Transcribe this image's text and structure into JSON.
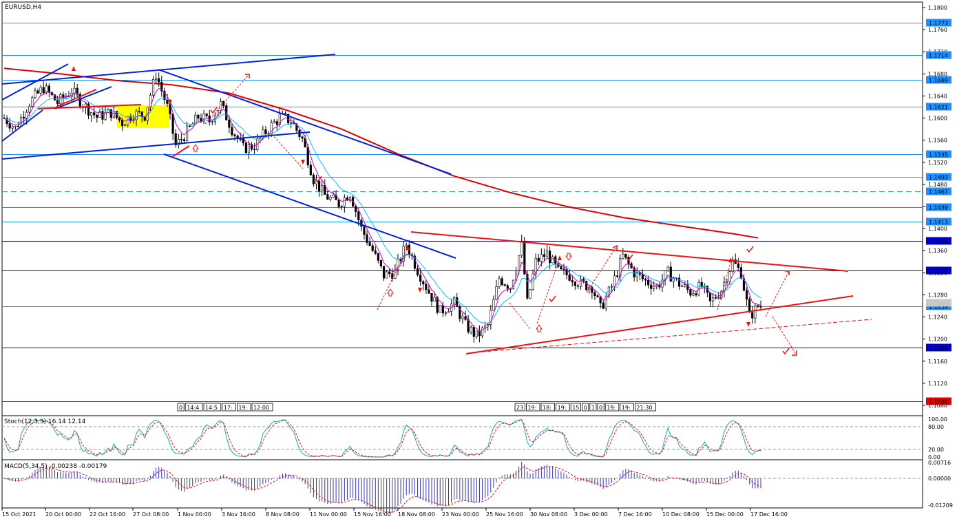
{
  "chart_data": {
    "type": "candlestick",
    "title": "EURUSD,H4",
    "symbol": "EURUSD",
    "timeframe": "H4",
    "price_axis": {
      "ylim": [
        1.107,
        1.1805
      ],
      "ticks": [
        "1.1800",
        "1.1760",
        "1.1720",
        "1.1680",
        "1.1640",
        "1.1600",
        "1.1560",
        "1.1520",
        "1.1480",
        "1.1440",
        "1.1400",
        "1.1360",
        "1.1320",
        "1.1280",
        "1.1240",
        "1.1200",
        "1.1160",
        "1.1120",
        "1.1080"
      ],
      "levels": [
        {
          "label": "1.1773",
          "value": 1.1773,
          "color": "#1e90ff"
        },
        {
          "label": "1.1714",
          "value": 1.1714,
          "color": "#1e90ff"
        },
        {
          "label": "1.1669",
          "value": 1.1669,
          "color": "#1e90ff"
        },
        {
          "label": "1.1621",
          "value": 1.1621,
          "color": "#1e90ff"
        },
        {
          "label": "1.1535",
          "value": 1.1535,
          "color": "#1e90ff"
        },
        {
          "label": "1.1493",
          "value": 1.1493,
          "color": "#1e90ff"
        },
        {
          "label": "1.1467",
          "value": 1.1467,
          "color": "#1e90ff",
          "dashed": true
        },
        {
          "label": "1.1439",
          "value": 1.1439,
          "color": "#1e90ff"
        },
        {
          "label": "1.1413",
          "value": 1.1413,
          "color": "#1e90ff"
        },
        {
          "label": "1.1378",
          "value": 1.1378,
          "color": "#0000cd"
        },
        {
          "label": "1.1324",
          "value": 1.1324,
          "color": "#0000cd"
        },
        {
          "label": "1.1259",
          "value": 1.1259,
          "color": "#1e90ff"
        },
        {
          "label": "1.1184",
          "value": 1.1184,
          "color": "#0000cd"
        },
        {
          "label": "1.1088",
          "value": 1.1088,
          "color": "#e00000"
        }
      ],
      "current_price": 1.1265
    },
    "time_axis": [
      "15 Oct 2021",
      "20 Oct 00:00",
      "22 Oct 16:00",
      "27 Oct 08:00",
      "1 Nov 00:00",
      "3 Nov 16:00",
      "8 Nov 08:00",
      "11 Nov 00:00",
      "15 Nov 16:00",
      "18 Nov 08:00",
      "23 Nov 00:00",
      "25 Nov 16:00",
      "30 Nov 08:00",
      "3 Dec 00:00",
      "7 Dec 16:00",
      "10 Dec 08:00",
      "15 Dec 00:00",
      "17 Dec 16:00"
    ],
    "anchors": [
      [
        0,
        1.16
      ],
      [
        4,
        1.1582
      ],
      [
        9,
        1.1628
      ],
      [
        14,
        1.1655
      ],
      [
        19,
        1.1628
      ],
      [
        24,
        1.165
      ],
      [
        28,
        1.1625
      ],
      [
        33,
        1.1602
      ],
      [
        38,
        1.161
      ],
      [
        42,
        1.1592
      ],
      [
        46,
        1.1608
      ],
      [
        50,
        1.1605
      ],
      [
        54,
        1.168
      ],
      [
        58,
        1.162
      ],
      [
        61,
        1.155
      ],
      [
        65,
        1.1575
      ],
      [
        69,
        1.1602
      ],
      [
        73,
        1.1595
      ],
      [
        77,
        1.1625
      ],
      [
        81,
        1.158
      ],
      [
        85,
        1.1545
      ],
      [
        89,
        1.155
      ],
      [
        93,
        1.1575
      ],
      [
        98,
        1.1602
      ],
      [
        102,
        1.1595
      ],
      [
        106,
        1.1562
      ],
      [
        110,
        1.149
      ],
      [
        114,
        1.146
      ],
      [
        119,
        1.1445
      ],
      [
        123,
        1.1465
      ],
      [
        127,
        1.14
      ],
      [
        131,
        1.136
      ],
      [
        135,
        1.1315
      ],
      [
        139,
        1.1322
      ],
      [
        143,
        1.1372
      ],
      [
        147,
        1.1325
      ],
      [
        151,
        1.1285
      ],
      [
        155,
        1.125
      ],
      [
        160,
        1.1265
      ],
      [
        164,
        1.1225
      ],
      [
        168,
        1.1205
      ],
      [
        172,
        1.1225
      ],
      [
        176,
        1.131
      ],
      [
        180,
        1.1295
      ],
      [
        184,
        1.137
      ],
      [
        186,
        1.1265
      ],
      [
        189,
        1.134
      ],
      [
        193,
        1.1355
      ],
      [
        197,
        1.1322
      ],
      [
        201,
        1.1315
      ],
      [
        205,
        1.13
      ],
      [
        209,
        1.1295
      ],
      [
        212,
        1.1255
      ],
      [
        216,
        1.1295
      ],
      [
        220,
        1.135
      ],
      [
        224,
        1.132
      ],
      [
        228,
        1.1305
      ],
      [
        232,
        1.1295
      ],
      [
        236,
        1.132
      ],
      [
        240,
        1.13
      ],
      [
        244,
        1.1285
      ],
      [
        248,
        1.1295
      ],
      [
        251,
        1.1265
      ],
      [
        255,
        1.129
      ],
      [
        259,
        1.134
      ],
      [
        262,
        1.132
      ],
      [
        265,
        1.124
      ],
      [
        268,
        1.126
      ]
    ],
    "moving_averages": [
      {
        "name": "slow-ma",
        "color": "#e00000",
        "points": [
          [
            0,
            1.169
          ],
          [
            20,
            1.168
          ],
          [
            40,
            1.1668
          ],
          [
            60,
            1.166
          ],
          [
            80,
            1.1645
          ],
          [
            100,
            1.1615
          ],
          [
            120,
            1.158
          ],
          [
            140,
            1.1535
          ],
          [
            160,
            1.1495
          ],
          [
            180,
            1.1465
          ],
          [
            200,
            1.144
          ],
          [
            220,
            1.142
          ],
          [
            240,
            1.1405
          ],
          [
            260,
            1.139
          ],
          [
            268,
            1.1383
          ]
        ]
      }
    ],
    "stochastic": {
      "label": "Stoch(12,3,3) 16.14 12.14",
      "main": 16.14,
      "signal": 12.14,
      "ticks": [
        "100.00",
        "80.00",
        "20.00",
        "0.00"
      ],
      "levels": [
        80,
        20
      ]
    },
    "macd": {
      "label": "MACD(5,34,5) -0.00238 -0.00179",
      "main": -0.00238,
      "signal": -0.00179,
      "ticks": [
        "0.00716",
        "0.00000",
        "-0.01209"
      ],
      "ylim": [
        -0.01209,
        0.00716
      ]
    },
    "session_labels_left": [
      "0",
      "14:4",
      "14:5",
      "17:",
      "19:",
      "12:00"
    ],
    "session_labels_right": [
      "23",
      "19:",
      "18:",
      "19:",
      "15",
      "0",
      "1",
      "0",
      "19:",
      "19:",
      "21:30"
    ]
  },
  "colors": {
    "bull": "#ffffff",
    "bear": "#000000",
    "wick": "#000000",
    "ema_fast": "#cc00cc",
    "ema_slow": "#00bfff",
    "trend_blue": "#0022dd",
    "trend_red": "#ee1111",
    "signal": "#ee1111",
    "highlight": "#ffff00"
  }
}
